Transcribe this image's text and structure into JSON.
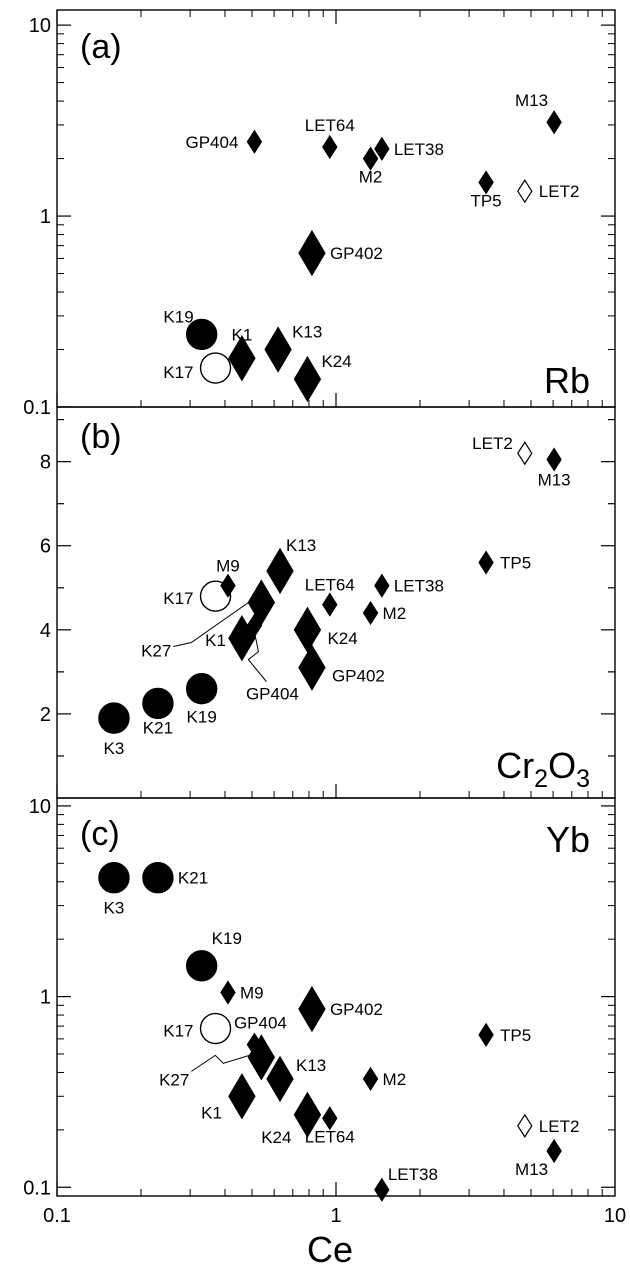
{
  "chart_data": [
    {
      "type": "scatter",
      "panel_label": "(a)",
      "element": "Rb",
      "xscale": "log",
      "yscale": "log",
      "xlim": [
        0.1,
        10
      ],
      "ylim": [
        0.1,
        12
      ],
      "yticks": [
        0.1,
        1,
        10
      ],
      "yticklabels": [
        "0.1",
        "1",
        "10"
      ],
      "points": [
        {
          "label": "K19",
          "x": 0.33,
          "y": 0.24,
          "marker": "circle",
          "filled": true,
          "size": "large"
        },
        {
          "label": "K17",
          "x": 0.37,
          "y": 0.16,
          "marker": "circle",
          "filled": false,
          "size": "large"
        },
        {
          "label": "K1",
          "x": 0.46,
          "y": 0.18,
          "marker": "diamond",
          "filled": true,
          "size": "large"
        },
        {
          "label": "K13",
          "x": 0.62,
          "y": 0.2,
          "marker": "diamond",
          "filled": true,
          "size": "large"
        },
        {
          "label": "K24",
          "x": 0.79,
          "y": 0.14,
          "marker": "diamond",
          "filled": true,
          "size": "large"
        },
        {
          "label": "GP402",
          "x": 0.82,
          "y": 0.64,
          "marker": "diamond",
          "filled": true,
          "size": "large"
        },
        {
          "label": "GP404",
          "x": 0.51,
          "y": 2.45,
          "marker": "diamond",
          "filled": true,
          "size": "small"
        },
        {
          "label": "LET64",
          "x": 0.95,
          "y": 2.3,
          "marker": "diamond",
          "filled": true,
          "size": "small"
        },
        {
          "label": "M2",
          "x": 1.33,
          "y": 2.0,
          "marker": "diamond",
          "filled": true,
          "size": "small"
        },
        {
          "label": "LET38",
          "x": 1.46,
          "y": 2.25,
          "marker": "diamond",
          "filled": true,
          "size": "small"
        },
        {
          "label": "TP5",
          "x": 3.45,
          "y": 1.5,
          "marker": "diamond",
          "filled": true,
          "size": "small"
        },
        {
          "label": "LET2",
          "x": 4.75,
          "y": 1.35,
          "marker": "diamond",
          "filled": false,
          "size": "small"
        },
        {
          "label": "M13",
          "x": 6.05,
          "y": 3.1,
          "marker": "diamond",
          "filled": true,
          "size": "small"
        }
      ]
    },
    {
      "type": "scatter",
      "panel_label": "(b)",
      "element": "Cr2O3",
      "xscale": "log",
      "yscale": "linear",
      "xlim": [
        0.1,
        10
      ],
      "ylim": [
        0,
        9.3
      ],
      "yticks": [
        2,
        4,
        6,
        8
      ],
      "yticklabels": [
        "2",
        "4",
        "6",
        "8"
      ],
      "points": [
        {
          "label": "K3",
          "x": 0.16,
          "y": 1.9,
          "marker": "circle",
          "filled": true,
          "size": "large"
        },
        {
          "label": "K21",
          "x": 0.23,
          "y": 2.25,
          "marker": "circle",
          "filled": true,
          "size": "large"
        },
        {
          "label": "K19",
          "x": 0.33,
          "y": 2.6,
          "marker": "circle",
          "filled": true,
          "size": "large"
        },
        {
          "label": "K17",
          "x": 0.37,
          "y": 4.8,
          "marker": "circle",
          "filled": false,
          "size": "large"
        },
        {
          "label": "M9",
          "x": 0.41,
          "y": 5.05,
          "marker": "diamond",
          "filled": true,
          "size": "small"
        },
        {
          "label": "K1",
          "x": 0.46,
          "y": 3.8,
          "marker": "diamond",
          "filled": true,
          "size": "large"
        },
        {
          "label": "GP404",
          "x": 0.51,
          "y": 4.1,
          "marker": "diamond",
          "filled": true,
          "size": "small"
        },
        {
          "label": "K27",
          "x": 0.54,
          "y": 4.65,
          "marker": "diamond",
          "filled": true,
          "size": "large"
        },
        {
          "label": "K13",
          "x": 0.63,
          "y": 5.4,
          "marker": "diamond",
          "filled": true,
          "size": "large"
        },
        {
          "label": "K24",
          "x": 0.79,
          "y": 4.0,
          "marker": "diamond",
          "filled": true,
          "size": "large"
        },
        {
          "label": "GP402",
          "x": 0.82,
          "y": 3.1,
          "marker": "diamond",
          "filled": true,
          "size": "large"
        },
        {
          "label": "LET64",
          "x": 0.95,
          "y": 4.6,
          "marker": "diamond",
          "filled": true,
          "size": "small"
        },
        {
          "label": "M2",
          "x": 1.33,
          "y": 4.4,
          "marker": "diamond",
          "filled": true,
          "size": "small"
        },
        {
          "label": "LET38",
          "x": 1.46,
          "y": 5.05,
          "marker": "diamond",
          "filled": true,
          "size": "small"
        },
        {
          "label": "TP5",
          "x": 3.45,
          "y": 5.6,
          "marker": "diamond",
          "filled": true,
          "size": "small"
        },
        {
          "label": "LET2",
          "x": 4.75,
          "y": 8.2,
          "marker": "diamond",
          "filled": false,
          "size": "small"
        },
        {
          "label": "M13",
          "x": 6.05,
          "y": 8.05,
          "marker": "diamond",
          "filled": true,
          "size": "small"
        }
      ]
    },
    {
      "type": "scatter",
      "panel_label": "(c)",
      "element": "Yb",
      "xscale": "log",
      "yscale": "log",
      "xlim": [
        0.1,
        10
      ],
      "ylim": [
        0.09,
        11
      ],
      "yticks": [
        0.1,
        1,
        10
      ],
      "yticklabels": [
        "0.1",
        "1",
        "10"
      ],
      "xticks": [
        0.1,
        1,
        10
      ],
      "xticklabels": [
        "0.1",
        "1",
        "10"
      ],
      "xlabel": "Ce",
      "points": [
        {
          "label": "K3",
          "x": 0.16,
          "y": 4.2,
          "marker": "circle",
          "filled": true,
          "size": "large"
        },
        {
          "label": "K21",
          "x": 0.23,
          "y": 4.2,
          "marker": "circle",
          "filled": true,
          "size": "large"
        },
        {
          "label": "K19",
          "x": 0.33,
          "y": 1.45,
          "marker": "circle",
          "filled": true,
          "size": "large"
        },
        {
          "label": "M9",
          "x": 0.41,
          "y": 1.05,
          "marker": "diamond",
          "filled": true,
          "size": "small"
        },
        {
          "label": "K17",
          "x": 0.37,
          "y": 0.68,
          "marker": "circle",
          "filled": false,
          "size": "large"
        },
        {
          "label": "GP404",
          "x": 0.51,
          "y": 0.56,
          "marker": "diamond",
          "filled": true,
          "size": "small"
        },
        {
          "label": "K27",
          "x": 0.54,
          "y": 0.48,
          "marker": "diamond",
          "filled": true,
          "size": "large"
        },
        {
          "label": "K1",
          "x": 0.46,
          "y": 0.3,
          "marker": "diamond",
          "filled": true,
          "size": "large"
        },
        {
          "label": "K13",
          "x": 0.63,
          "y": 0.37,
          "marker": "diamond",
          "filled": true,
          "size": "large"
        },
        {
          "label": "K24",
          "x": 0.79,
          "y": 0.24,
          "marker": "diamond",
          "filled": true,
          "size": "large"
        },
        {
          "label": "GP402",
          "x": 0.82,
          "y": 0.86,
          "marker": "diamond",
          "filled": true,
          "size": "large"
        },
        {
          "label": "LET64",
          "x": 0.95,
          "y": 0.23,
          "marker": "diamond",
          "filled": true,
          "size": "small"
        },
        {
          "label": "M2",
          "x": 1.33,
          "y": 0.37,
          "marker": "diamond",
          "filled": true,
          "size": "small"
        },
        {
          "label": "LET38",
          "x": 1.46,
          "y": 0.097,
          "marker": "diamond",
          "filled": true,
          "size": "small"
        },
        {
          "label": "TP5",
          "x": 3.45,
          "y": 0.63,
          "marker": "diamond",
          "filled": true,
          "size": "small"
        },
        {
          "label": "LET2",
          "x": 4.75,
          "y": 0.21,
          "marker": "diamond",
          "filled": false,
          "size": "small"
        },
        {
          "label": "M13",
          "x": 6.05,
          "y": 0.155,
          "marker": "diamond",
          "filled": true,
          "size": "small"
        }
      ]
    }
  ]
}
